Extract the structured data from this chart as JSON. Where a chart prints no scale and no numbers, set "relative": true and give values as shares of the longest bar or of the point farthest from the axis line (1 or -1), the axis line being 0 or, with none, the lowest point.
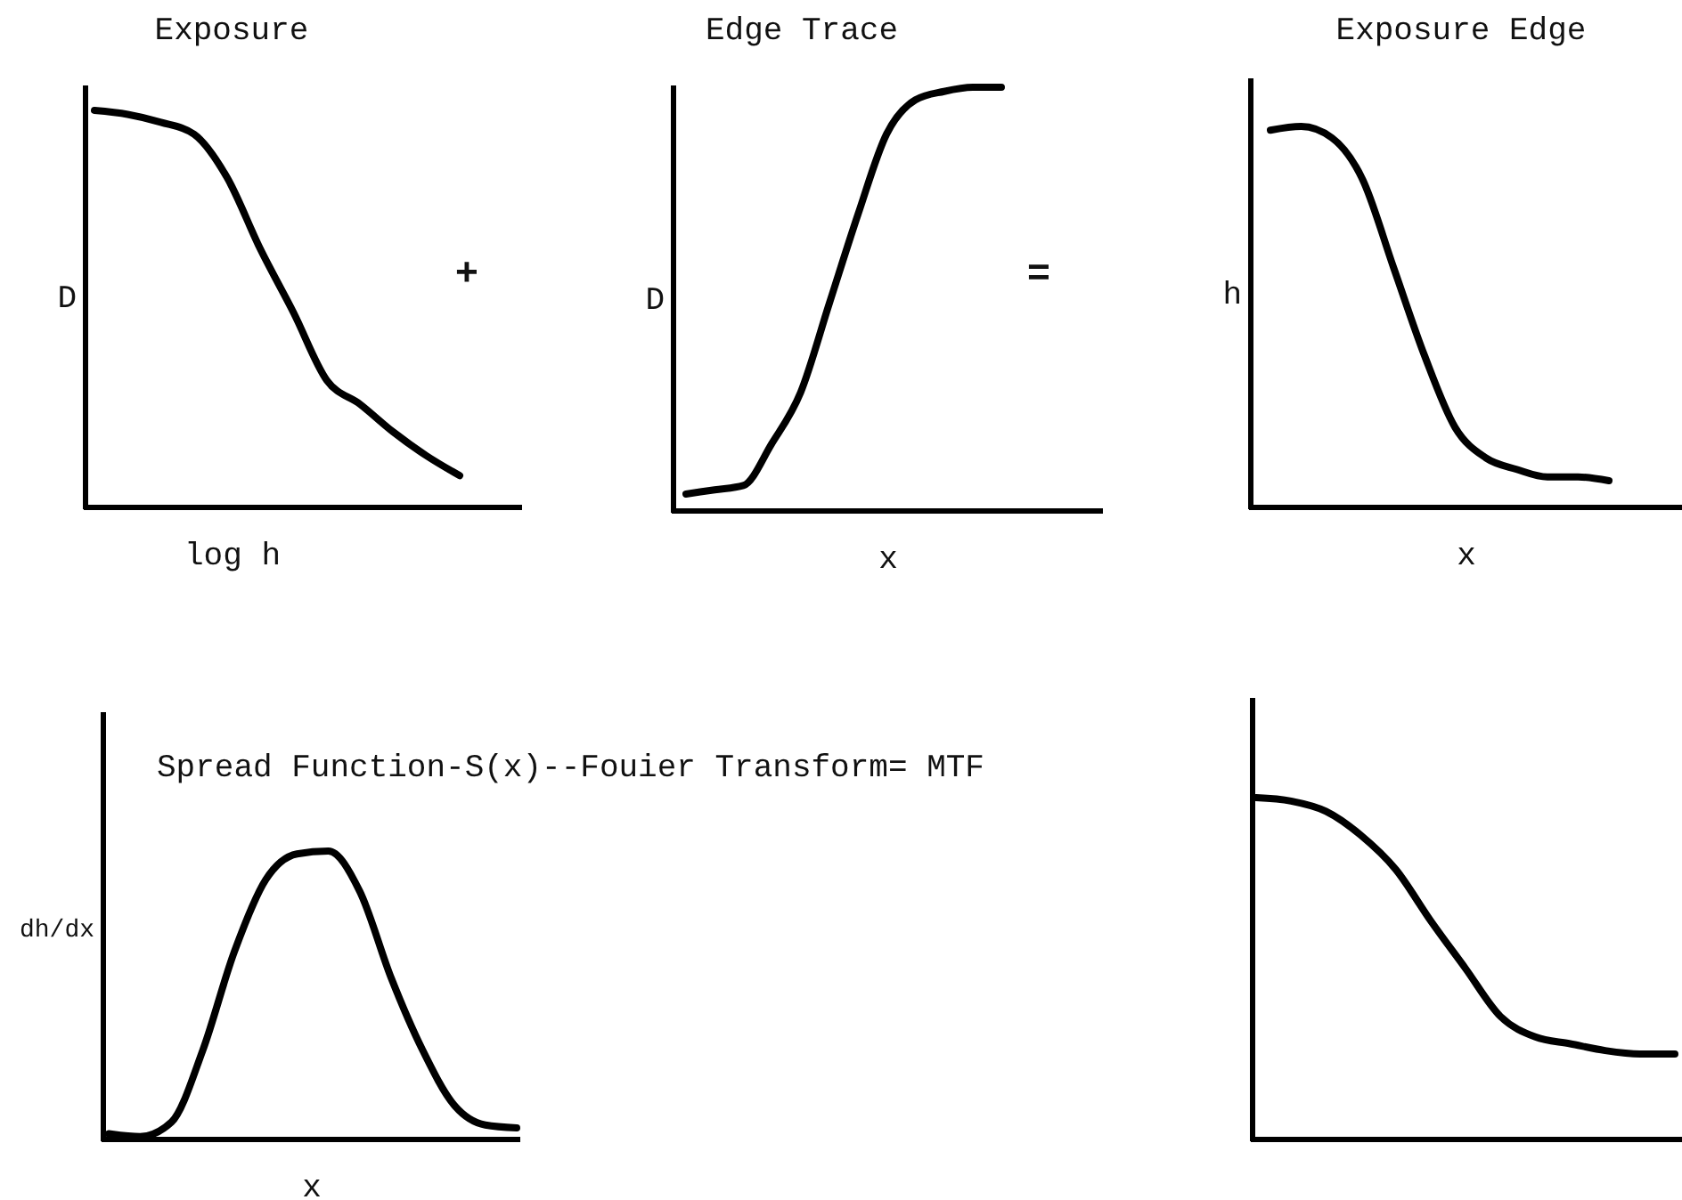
{
  "chart_data": [
    {
      "type": "line",
      "title": "Exposure",
      "xlabel": "log h",
      "ylabel": "D",
      "relative": true,
      "annotations": [
        "+"
      ],
      "categories": [
        null,
        null,
        null,
        null,
        null,
        null,
        null,
        null,
        null,
        null,
        null,
        null
      ],
      "series": [
        {
          "color": "#000000",
          "values": [
            1.0,
            0.99,
            0.97,
            0.94,
            0.83,
            0.65,
            0.49,
            0.32,
            0.26,
            0.19,
            0.13,
            0.08
          ]
        }
      ]
    },
    {
      "type": "line",
      "title": "Edge Trace",
      "xlabel": "x",
      "ylabel": "D",
      "relative": true,
      "annotations": [
        "="
      ],
      "categories": [
        null,
        null,
        null,
        null,
        null,
        null,
        null,
        null,
        null,
        null,
        null,
        null
      ],
      "series": [
        {
          "color": "#000000",
          "values": [
            0.04,
            0.05,
            0.06,
            0.16,
            0.28,
            0.49,
            0.7,
            0.89,
            0.97,
            0.99,
            1.0,
            1.0
          ]
        }
      ]
    },
    {
      "type": "line",
      "title": "Exposure Edge",
      "xlabel": "x",
      "ylabel": "h",
      "relative": true,
      "categories": [
        null,
        null,
        null,
        null,
        null,
        null,
        null,
        null,
        null,
        null,
        null,
        null
      ],
      "series": [
        {
          "color": "#000000",
          "values": [
            0.99,
            1.0,
            0.97,
            0.86,
            0.63,
            0.4,
            0.21,
            0.13,
            0.1,
            0.08,
            0.08,
            0.07
          ]
        }
      ]
    },
    {
      "type": "line",
      "title": "Spread Function-S(x)--Fouier Transform= MTF",
      "xlabel": "x",
      "ylabel": "dh/dx",
      "relative": true,
      "categories": [
        null,
        null,
        null,
        null,
        null,
        null,
        null,
        null,
        null,
        null,
        null,
        null,
        null,
        null
      ],
      "series": [
        {
          "color": "#000000",
          "values": [
            0.02,
            0.01,
            0.06,
            0.31,
            0.65,
            0.9,
            0.99,
            1.0,
            0.86,
            0.56,
            0.31,
            0.12,
            0.05,
            0.04
          ]
        }
      ]
    },
    {
      "type": "line",
      "relative": true,
      "categories": [
        null,
        null,
        null,
        null,
        null,
        null,
        null,
        null,
        null,
        null,
        null,
        null,
        null
      ],
      "series": [
        {
          "color": "#000000",
          "values": [
            1.0,
            0.99,
            0.96,
            0.89,
            0.79,
            0.64,
            0.5,
            0.36,
            0.3,
            0.28,
            0.26,
            0.25,
            0.25
          ]
        }
      ]
    }
  ]
}
